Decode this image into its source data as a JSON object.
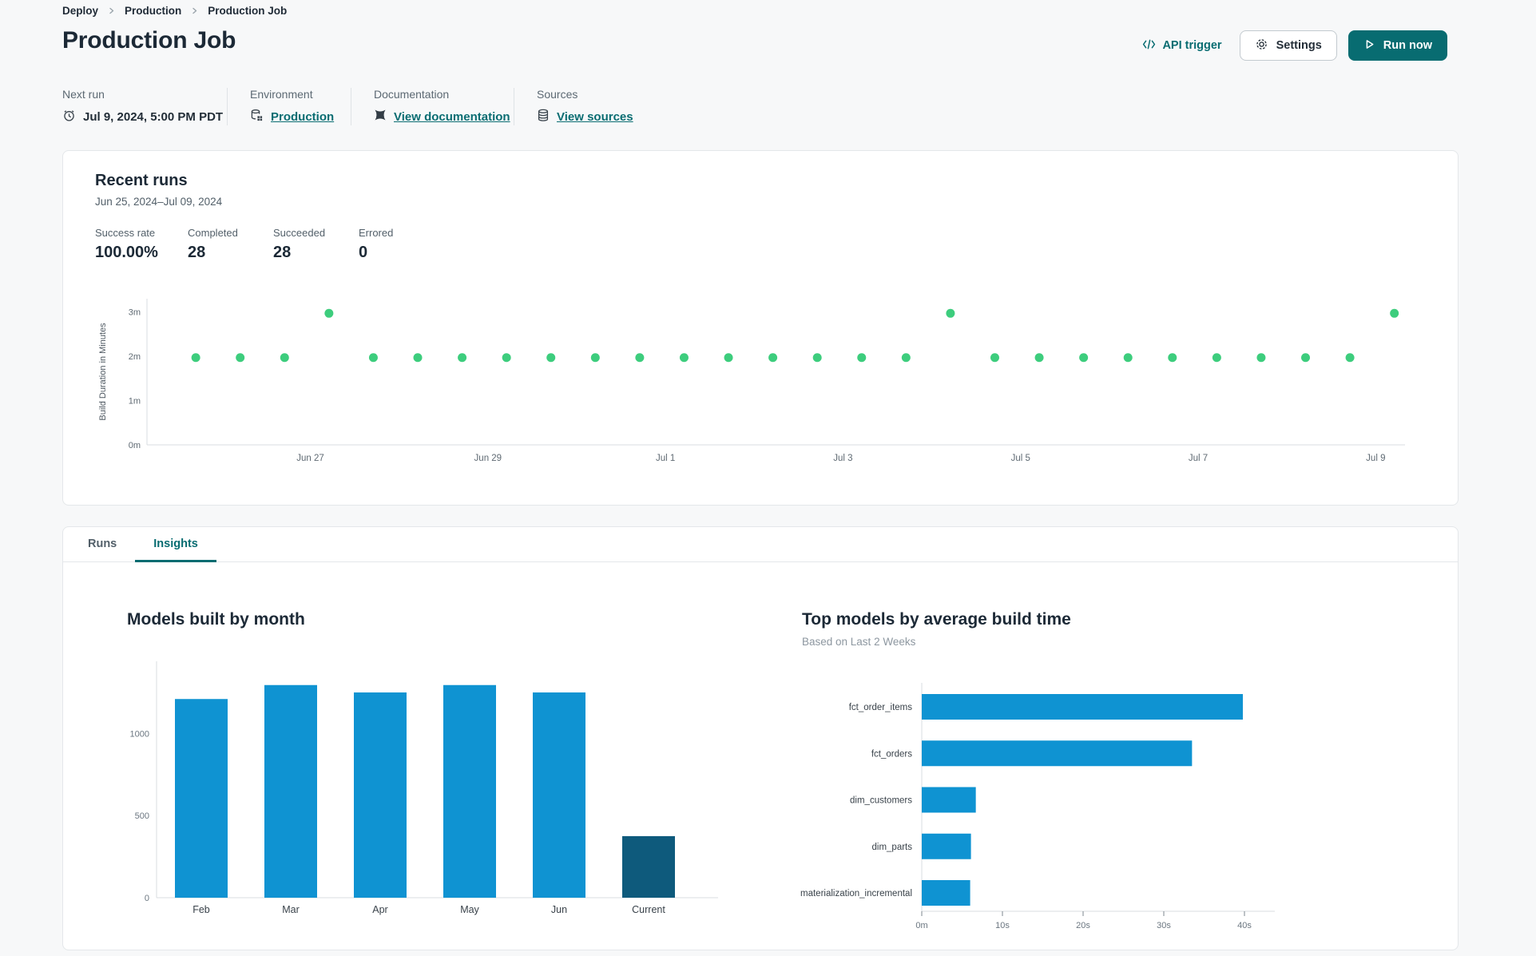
{
  "breadcrumb": {
    "items": [
      "Deploy",
      "Production",
      "Production Job"
    ]
  },
  "header": {
    "title": "Production Job",
    "api_trigger_label": "API trigger",
    "settings_label": "Settings",
    "run_now_label": "Run now"
  },
  "info": {
    "next_run": {
      "label": "Next run",
      "value": "Jul 9, 2024, 5:00 PM PDT"
    },
    "environment": {
      "label": "Environment",
      "value": "Production"
    },
    "documentation": {
      "label": "Documentation",
      "value": "View documentation"
    },
    "sources": {
      "label": "Sources",
      "value": "View sources"
    }
  },
  "recent_runs": {
    "title": "Recent runs",
    "date_range": "Jun 25, 2024–Jul 09, 2024",
    "stats": [
      {
        "label": "Success rate",
        "value": "100.00%"
      },
      {
        "label": "Completed",
        "value": "28"
      },
      {
        "label": "Succeeded",
        "value": "28"
      },
      {
        "label": "Errored",
        "value": "0"
      }
    ]
  },
  "tabs": [
    {
      "label": "Runs",
      "active": false
    },
    {
      "label": "Insights",
      "active": true
    }
  ],
  "colors": {
    "accent_teal": "#086c71",
    "dot_green": "#3dcd7d",
    "bar_blue": "#0f93d2",
    "bar_dark_blue": "#0e5a7c",
    "axis_gray": "#d9dde0",
    "tick_text": "#6b7680"
  },
  "chart_data": [
    {
      "id": "build-duration",
      "type": "scatter",
      "ylabel": "Build Duration in Minutes",
      "point_color": "#3dcd7d",
      "xlim": [
        -0.55,
        13.62
      ],
      "ylim": [
        0,
        3.3
      ],
      "grid": false,
      "y_ticks": [
        {
          "v": 0,
          "label": "0m"
        },
        {
          "v": 1,
          "label": "1m"
        },
        {
          "v": 2,
          "label": "2m"
        },
        {
          "v": 3,
          "label": "3m"
        }
      ],
      "x_ticks": [
        {
          "t": 1.29,
          "label": "Jun 27"
        },
        {
          "t": 3.29,
          "label": "Jun 29"
        },
        {
          "t": 5.29,
          "label": "Jul 1"
        },
        {
          "t": 7.29,
          "label": "Jul 3"
        },
        {
          "t": 9.29,
          "label": "Jul 5"
        },
        {
          "t": 11.29,
          "label": "Jul 7"
        },
        {
          "t": 13.29,
          "label": "Jul 9"
        }
      ],
      "points": [
        {
          "t": 0.0,
          "v": 1.97
        },
        {
          "t": 0.5,
          "v": 1.97
        },
        {
          "t": 1.0,
          "v": 1.97
        },
        {
          "t": 1.5,
          "v": 2.97
        },
        {
          "t": 2.0,
          "v": 1.97
        },
        {
          "t": 2.5,
          "v": 1.97
        },
        {
          "t": 3.0,
          "v": 1.97
        },
        {
          "t": 3.5,
          "v": 1.97
        },
        {
          "t": 4.0,
          "v": 1.97
        },
        {
          "t": 4.5,
          "v": 1.97
        },
        {
          "t": 5.0,
          "v": 1.97
        },
        {
          "t": 5.5,
          "v": 1.97
        },
        {
          "t": 6.0,
          "v": 1.97
        },
        {
          "t": 6.5,
          "v": 1.97
        },
        {
          "t": 7.0,
          "v": 1.97
        },
        {
          "t": 7.5,
          "v": 1.97
        },
        {
          "t": 8.0,
          "v": 1.97
        },
        {
          "t": 8.5,
          "v": 2.97
        },
        {
          "t": 9.0,
          "v": 1.97
        },
        {
          "t": 9.5,
          "v": 1.97
        },
        {
          "t": 10.0,
          "v": 1.97
        },
        {
          "t": 10.5,
          "v": 1.97
        },
        {
          "t": 11.0,
          "v": 1.97
        },
        {
          "t": 11.5,
          "v": 1.97
        },
        {
          "t": 12.0,
          "v": 1.97
        },
        {
          "t": 12.5,
          "v": 1.97
        },
        {
          "t": 13.0,
          "v": 1.97
        },
        {
          "t": 13.5,
          "v": 2.97
        }
      ]
    },
    {
      "id": "models-by-month",
      "type": "bar",
      "title": "Models built by month",
      "categories": [
        "Feb",
        "Mar",
        "Apr",
        "May",
        "Jun",
        "Current"
      ],
      "values": [
        1210,
        1295,
        1250,
        1295,
        1250,
        375
      ],
      "bar_colors": [
        "#0f93d2",
        "#0f93d2",
        "#0f93d2",
        "#0f93d2",
        "#0f93d2",
        "#0e5a7c"
      ],
      "ylim": [
        0,
        1430
      ],
      "y_ticks": [
        {
          "v": 0,
          "label": "0"
        },
        {
          "v": 500,
          "label": "500"
        },
        {
          "v": 1000,
          "label": "1000"
        }
      ]
    },
    {
      "id": "top-models",
      "type": "horizontal_bar",
      "title": "Top models by average build time",
      "subtitle": "Based on Last 2 Weeks",
      "categories": [
        "fct_order_items",
        "fct_orders",
        "dim_customers",
        "dim_parts",
        "materialization_incremental"
      ],
      "values": [
        39.8,
        33.5,
        6.7,
        6.1,
        6.0
      ],
      "unit": "seconds",
      "bar_color": "#0f93d2",
      "xlim": [
        0,
        44
      ],
      "x_ticks": [
        {
          "v": 0,
          "label": "0m"
        },
        {
          "v": 10,
          "label": "10s"
        },
        {
          "v": 20,
          "label": "20s"
        },
        {
          "v": 30,
          "label": "30s"
        },
        {
          "v": 40,
          "label": "40s"
        }
      ]
    }
  ]
}
